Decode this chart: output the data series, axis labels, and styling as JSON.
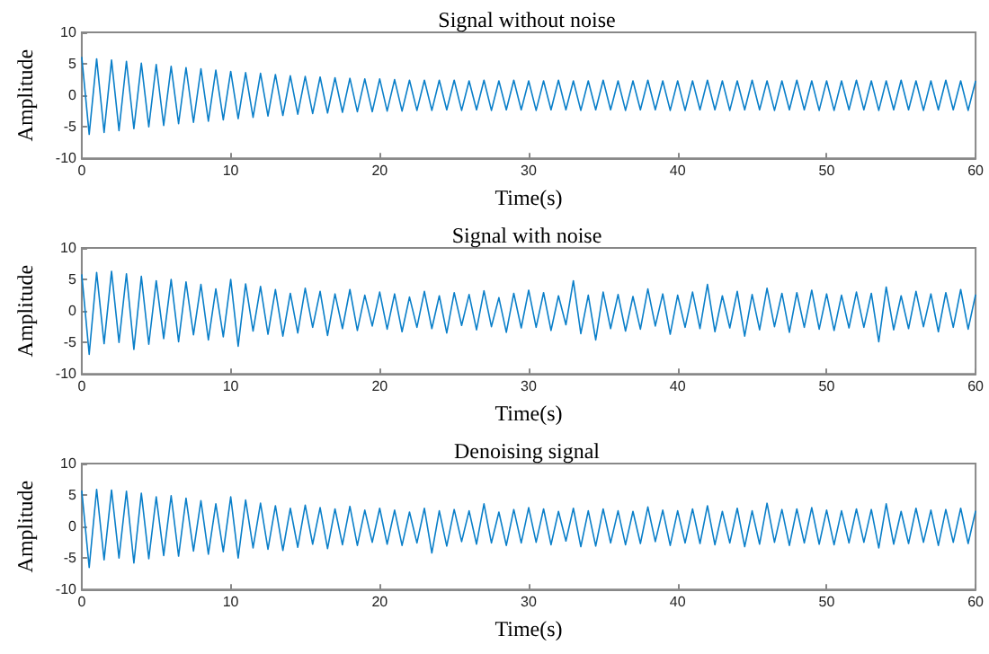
{
  "chart_data": [
    {
      "type": "line",
      "title": "Signal without noise",
      "xlabel": "Time(s)",
      "ylabel": "Amplitude",
      "xlim": [
        0,
        60
      ],
      "xticks": [
        0,
        10,
        20,
        30,
        40,
        50,
        60
      ],
      "ylim": [
        -10,
        10
      ],
      "yticks": [
        -10,
        -5,
        0,
        5,
        10
      ],
      "grid": false,
      "marker": "none",
      "line_style": "solid",
      "x": [
        0,
        0.5,
        1,
        1.5,
        2,
        2.5,
        3,
        3.5,
        4,
        4.5,
        5,
        5.5,
        6,
        6.5,
        7,
        7.5,
        8,
        8.5,
        9,
        9.5,
        10,
        10.5,
        11,
        11.5,
        12,
        12.5,
        13,
        13.5,
        14,
        14.5,
        15,
        15.5,
        16,
        16.5,
        17,
        17.5,
        18,
        18.5,
        19,
        19.5,
        20,
        20.5,
        21,
        21.5,
        22,
        22.5,
        23,
        23.5,
        24,
        24.5,
        25,
        25.5,
        26,
        26.5,
        27,
        27.5,
        28,
        28.5,
        29,
        29.5,
        30,
        30.5,
        31,
        31.5,
        32,
        32.5,
        33,
        33.5,
        34,
        34.5,
        35,
        35.5,
        36,
        36.5,
        37,
        37.5,
        38,
        38.5,
        39,
        39.5,
        40,
        40.5,
        41,
        41.5,
        42,
        42.5,
        43,
        43.5,
        44,
        44.5,
        45,
        45.5,
        46,
        46.5,
        47,
        47.5,
        48,
        48.5,
        49,
        49.5,
        50,
        50.5,
        51,
        51.5,
        52,
        52.5,
        53,
        53.5,
        54,
        54.5,
        55,
        55.5,
        56,
        56.5,
        57,
        57.5,
        58,
        58.5,
        59,
        59.5,
        60
      ],
      "series": [
        {
          "color": "#0a7fc9",
          "values": [
            6.1,
            -6.2,
            5.8,
            -5.9,
            5.6,
            -5.6,
            5.4,
            -5.3,
            5.1,
            -5.0,
            4.9,
            -4.8,
            4.6,
            -4.5,
            4.4,
            -4.3,
            4.2,
            -4.1,
            4.0,
            -3.9,
            3.8,
            -3.7,
            3.6,
            -3.5,
            3.5,
            -3.3,
            3.3,
            -3.2,
            3.1,
            -3.0,
            3.0,
            -2.9,
            2.9,
            -2.8,
            2.8,
            -2.7,
            2.7,
            -2.6,
            2.6,
            -2.6,
            2.6,
            -2.5,
            2.5,
            -2.5,
            2.4,
            -2.4,
            2.4,
            -2.4,
            2.4,
            -2.3,
            2.4,
            -2.4,
            2.3,
            -2.3,
            2.4,
            -2.4,
            2.3,
            -2.3,
            2.4,
            -2.3,
            2.3,
            -2.4,
            2.3,
            -2.3,
            2.4,
            -2.3,
            2.3,
            -2.4,
            2.3,
            -2.3,
            2.4,
            -2.3,
            2.3,
            -2.4,
            2.3,
            -2.3,
            2.4,
            -2.3,
            2.3,
            -2.4,
            2.3,
            -2.4,
            2.3,
            -2.3,
            2.4,
            -2.3,
            2.3,
            -2.4,
            2.3,
            -2.3,
            2.4,
            -2.3,
            2.3,
            -2.4,
            2.3,
            -2.3,
            2.4,
            -2.3,
            2.3,
            -2.4,
            2.3,
            -2.4,
            2.3,
            -2.3,
            2.4,
            -2.3,
            2.3,
            -2.4,
            2.3,
            -2.3,
            2.4,
            -2.3,
            2.3,
            -2.4,
            2.3,
            -2.3,
            2.4,
            -2.3,
            2.3,
            -2.4,
            2.3
          ]
        }
      ]
    },
    {
      "type": "line",
      "title": "Signal with noise",
      "xlabel": "Time(s)",
      "ylabel": "Amplitude",
      "xlim": [
        0,
        60
      ],
      "xticks": [
        0,
        10,
        20,
        30,
        40,
        50,
        60
      ],
      "ylim": [
        -10,
        10
      ],
      "yticks": [
        -10,
        -5,
        0,
        5,
        10
      ],
      "grid": false,
      "marker": "none",
      "line_style": "solid",
      "x": [
        0,
        0.5,
        1,
        1.5,
        2,
        2.5,
        3,
        3.5,
        4,
        4.5,
        5,
        5.5,
        6,
        6.5,
        7,
        7.5,
        8,
        8.5,
        9,
        9.5,
        10,
        10.5,
        11,
        11.5,
        12,
        12.5,
        13,
        13.5,
        14,
        14.5,
        15,
        15.5,
        16,
        16.5,
        17,
        17.5,
        18,
        18.5,
        19,
        19.5,
        20,
        20.5,
        21,
        21.5,
        22,
        22.5,
        23,
        23.5,
        24,
        24.5,
        25,
        25.5,
        26,
        26.5,
        27,
        27.5,
        28,
        28.5,
        29,
        29.5,
        30,
        30.5,
        31,
        31.5,
        32,
        32.5,
        33,
        33.5,
        34,
        34.5,
        35,
        35.5,
        36,
        36.5,
        37,
        37.5,
        38,
        38.5,
        39,
        39.5,
        40,
        40.5,
        41,
        41.5,
        42,
        42.5,
        43,
        43.5,
        44,
        44.5,
        45,
        45.5,
        46,
        46.5,
        47,
        47.5,
        48,
        48.5,
        49,
        49.5,
        50,
        50.5,
        51,
        51.5,
        52,
        52.5,
        53,
        53.5,
        54,
        54.5,
        55,
        55.5,
        56,
        56.5,
        57,
        57.5,
        58,
        58.5,
        59,
        59.5,
        60
      ],
      "series": [
        {
          "color": "#0a7fc9",
          "values": [
            5.8,
            -6.9,
            6.1,
            -5.2,
            6.3,
            -5.0,
            5.9,
            -6.1,
            5.5,
            -5.3,
            4.8,
            -4.4,
            5.0,
            -4.9,
            4.6,
            -3.8,
            4.2,
            -4.6,
            3.5,
            -4.1,
            5.0,
            -5.6,
            4.3,
            -3.2,
            3.9,
            -3.7,
            3.4,
            -4.0,
            2.8,
            -3.5,
            3.6,
            -2.6,
            3.1,
            -3.9,
            2.7,
            -2.8,
            3.4,
            -3.1,
            2.5,
            -2.4,
            3.0,
            -2.9,
            2.7,
            -3.3,
            2.2,
            -2.6,
            3.1,
            -2.8,
            2.4,
            -3.5,
            2.9,
            -2.3,
            2.6,
            -3.0,
            3.2,
            -2.5,
            2.1,
            -3.4,
            2.8,
            -2.7,
            3.3,
            -2.6,
            2.9,
            -3.1,
            2.4,
            -2.2,
            4.8,
            -3.6,
            2.5,
            -4.6,
            3.0,
            -2.8,
            2.6,
            -3.2,
            2.3,
            -2.9,
            3.5,
            -2.4,
            2.7,
            -3.7,
            2.5,
            -2.6,
            3.0,
            -2.8,
            4.2,
            -3.3,
            2.4,
            -2.7,
            3.1,
            -4.0,
            2.6,
            -3.0,
            3.6,
            -2.5,
            2.8,
            -3.4,
            2.9,
            -2.6,
            3.3,
            -2.9,
            2.7,
            -3.1,
            2.5,
            -2.7,
            3.0,
            -2.6,
            2.8,
            -4.9,
            3.8,
            -3.0,
            2.4,
            -2.8,
            3.1,
            -2.5,
            2.7,
            -3.3,
            2.9,
            -2.6,
            3.4,
            -2.9,
            2.6
          ]
        }
      ]
    },
    {
      "type": "line",
      "title": "Denoising signal",
      "xlabel": "Time(s)",
      "ylabel": "Amplitude",
      "xlim": [
        0,
        60
      ],
      "xticks": [
        0,
        10,
        20,
        30,
        40,
        50,
        60
      ],
      "ylim": [
        -10,
        10
      ],
      "yticks": [
        -10,
        -5,
        0,
        5,
        10
      ],
      "grid": false,
      "marker": "none",
      "line_style": "solid",
      "x": [
        0,
        0.5,
        1,
        1.5,
        2,
        2.5,
        3,
        3.5,
        4,
        4.5,
        5,
        5.5,
        6,
        6.5,
        7,
        7.5,
        8,
        8.5,
        9,
        9.5,
        10,
        10.5,
        11,
        11.5,
        12,
        12.5,
        13,
        13.5,
        14,
        14.5,
        15,
        15.5,
        16,
        16.5,
        17,
        17.5,
        18,
        18.5,
        19,
        19.5,
        20,
        20.5,
        21,
        21.5,
        22,
        22.5,
        23,
        23.5,
        24,
        24.5,
        25,
        25.5,
        26,
        26.5,
        27,
        27.5,
        28,
        28.5,
        29,
        29.5,
        30,
        30.5,
        31,
        31.5,
        32,
        32.5,
        33,
        33.5,
        34,
        34.5,
        35,
        35.5,
        36,
        36.5,
        37,
        37.5,
        38,
        38.5,
        39,
        39.5,
        40,
        40.5,
        41,
        41.5,
        42,
        42.5,
        43,
        43.5,
        44,
        44.5,
        45,
        45.5,
        46,
        46.5,
        47,
        47.5,
        48,
        48.5,
        49,
        49.5,
        50,
        50.5,
        51,
        51.5,
        52,
        52.5,
        53,
        53.5,
        54,
        54.5,
        55,
        55.5,
        56,
        56.5,
        57,
        57.5,
        58,
        58.5,
        59,
        59.5,
        60
      ],
      "series": [
        {
          "color": "#0a7fc9",
          "values": [
            5.7,
            -6.5,
            5.9,
            -5.3,
            5.8,
            -5.0,
            5.6,
            -5.8,
            5.3,
            -5.1,
            4.7,
            -4.6,
            4.9,
            -4.7,
            4.5,
            -3.9,
            4.1,
            -4.4,
            3.6,
            -4.0,
            4.7,
            -5.0,
            4.2,
            -3.4,
            3.7,
            -3.6,
            3.3,
            -3.8,
            2.9,
            -3.3,
            3.4,
            -2.8,
            3.0,
            -3.5,
            2.8,
            -2.9,
            3.2,
            -3.0,
            2.6,
            -2.5,
            2.9,
            -2.8,
            2.6,
            -3.0,
            2.3,
            -2.6,
            2.9,
            -4.2,
            2.5,
            -3.1,
            2.7,
            -2.4,
            2.5,
            -2.8,
            3.6,
            -2.6,
            2.3,
            -3.0,
            2.7,
            -2.6,
            3.0,
            -2.5,
            2.8,
            -2.9,
            2.4,
            -2.3,
            2.9,
            -3.2,
            2.5,
            -3.1,
            2.8,
            -2.6,
            2.5,
            -2.9,
            2.4,
            -2.7,
            3.1,
            -2.4,
            2.6,
            -3.0,
            2.5,
            -2.6,
            2.8,
            -2.7,
            3.3,
            -2.9,
            2.4,
            -2.6,
            2.9,
            -3.2,
            2.5,
            -2.8,
            3.7,
            -2.5,
            2.7,
            -3.0,
            2.8,
            -2.6,
            3.0,
            -2.8,
            2.6,
            -2.9,
            2.5,
            -2.6,
            2.8,
            -2.5,
            2.7,
            -3.4,
            3.6,
            -2.8,
            2.4,
            -2.7,
            2.9,
            -2.5,
            2.6,
            -3.0,
            2.7,
            -2.5,
            2.9,
            -2.7,
            2.5
          ]
        }
      ]
    }
  ]
}
